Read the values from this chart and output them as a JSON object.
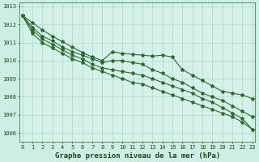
{
  "title": "Graphe pression niveau de la mer (hPa)",
  "background_color": "#cceee4",
  "plot_bg_color": "#d6f0ea",
  "line_color": "#2d6a2d",
  "grid_color": "#aad8cc",
  "hours": [
    0,
    1,
    2,
    3,
    4,
    5,
    6,
    7,
    8,
    9,
    10,
    11,
    12,
    13,
    14,
    15,
    16,
    17,
    18,
    19,
    20,
    21,
    22,
    23
  ],
  "series": [
    [
      1012.5,
      1012.1,
      1011.7,
      1011.35,
      1011.05,
      1010.75,
      1010.45,
      1010.2,
      1010.0,
      1010.5,
      1010.4,
      1010.35,
      1010.3,
      1010.25,
      1010.3,
      1010.2,
      1009.5,
      1009.2,
      1008.9,
      1008.6,
      1008.3,
      1008.2,
      1008.1,
      1007.9
    ],
    [
      1012.5,
      1011.85,
      1011.35,
      1011.1,
      1010.75,
      1010.5,
      1010.3,
      1010.1,
      1009.9,
      1010.0,
      1010.0,
      1009.9,
      1009.8,
      1009.5,
      1009.3,
      1009.0,
      1008.8,
      1008.5,
      1008.2,
      1008.0,
      1007.8,
      1007.5,
      1007.2,
      1006.9
    ],
    [
      1012.5,
      1011.7,
      1011.2,
      1010.9,
      1010.6,
      1010.3,
      1010.1,
      1009.8,
      1009.6,
      1009.5,
      1009.4,
      1009.3,
      1009.2,
      1009.0,
      1008.8,
      1008.6,
      1008.4,
      1008.2,
      1007.9,
      1007.7,
      1007.4,
      1007.1,
      1006.8,
      1006.2
    ],
    [
      1012.5,
      1011.5,
      1011.0,
      1010.7,
      1010.4,
      1010.1,
      1009.9,
      1009.6,
      1009.4,
      1009.2,
      1009.0,
      1008.8,
      1008.7,
      1008.5,
      1008.3,
      1008.1,
      1007.9,
      1007.7,
      1007.5,
      1007.3,
      1007.1,
      1006.9,
      1006.6,
      1006.2
    ]
  ],
  "ylim": [
    1005.5,
    1013.2
  ],
  "yticks": [
    1006,
    1007,
    1008,
    1009,
    1010,
    1011,
    1012,
    1013
  ],
  "marker": "*",
  "marker_size": 3,
  "line_width": 0.8,
  "title_fontsize": 6.5,
  "tick_fontsize": 5,
  "title_color": "#1a4a1a",
  "tick_color": "#1a4a1a",
  "figsize": [
    3.2,
    2.0
  ],
  "dpi": 100
}
